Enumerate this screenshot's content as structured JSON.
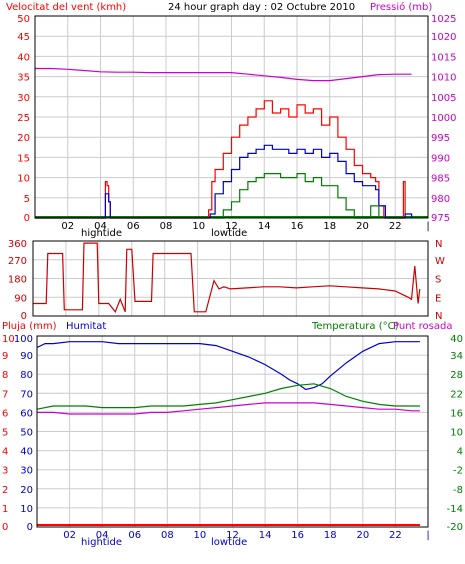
{
  "chart_data": [
    {
      "id": "wind-pressure",
      "type": "line",
      "title": "24 hour graph day : 02 Octubre 2010",
      "ylabel_left": "Velocitat del vent (kmh)",
      "ylabel_right": "Pressió (mb)",
      "x_ticks": [
        "02",
        "04",
        "06",
        "08",
        "10",
        "12",
        "14",
        "16",
        "18",
        "20",
        "22",
        "|"
      ],
      "x_annotations": [
        "hightide",
        "lowtide"
      ],
      "y_ticks_left": [
        "50",
        "45",
        "40",
        "35",
        "30",
        "25",
        "20",
        "15",
        "10",
        "5",
        "0"
      ],
      "y_ticks_right": [
        "1025",
        "1020",
        "1015",
        "1010",
        "1005",
        "1000",
        "995",
        "990",
        "985",
        "980",
        "975"
      ],
      "ylim_left": [
        0,
        50
      ],
      "ylim_right": [
        975,
        1025
      ],
      "grid": true,
      "colors": {
        "gust": "#ff0000",
        "avg": "#0000cc",
        "min": "#008000",
        "pressure": "#cc00cc",
        "base": "#008000"
      },
      "series": [
        {
          "key": "gust",
          "x": [
            0,
            4.3,
            4.4,
            4.5,
            4.6,
            10.6,
            10.8,
            11,
            11.5,
            12,
            12.5,
            13,
            13.5,
            14,
            14.5,
            15,
            15.5,
            16,
            16.5,
            17,
            17.5,
            18,
            18.5,
            19,
            19.5,
            20,
            20.5,
            20.8,
            21,
            21.3,
            22.5,
            22.6
          ],
          "y": [
            0,
            9,
            8,
            4,
            0,
            2,
            9,
            12,
            16,
            20,
            23,
            25,
            27,
            29,
            26,
            27,
            25,
            28,
            26,
            27,
            23,
            25,
            20,
            17,
            13,
            11,
            10,
            9,
            3,
            0,
            9,
            0
          ]
        },
        {
          "key": "avg",
          "x": [
            0,
            4.3,
            4.5,
            4.6,
            10.7,
            11,
            11.5,
            12,
            12.5,
            13,
            13.5,
            14,
            14.5,
            15,
            15.5,
            16,
            16.5,
            17,
            17.5,
            18,
            18.5,
            19,
            19.5,
            20,
            20.5,
            20.8,
            21,
            21.4,
            22.6,
            23
          ],
          "y": [
            0,
            6,
            4,
            0,
            1,
            6,
            9,
            12,
            15,
            16,
            17,
            18,
            17,
            17,
            16,
            17,
            16,
            17,
            15,
            16,
            14,
            11,
            9,
            8,
            8,
            7,
            3,
            0,
            1,
            0
          ]
        },
        {
          "key": "min",
          "x": [
            10.9,
            11.5,
            12,
            12.5,
            13,
            13.5,
            14,
            14.5,
            15,
            15.5,
            16,
            16.5,
            17,
            17.5,
            18,
            18.5,
            19,
            19.5,
            20,
            20.5,
            21
          ],
          "y": [
            0,
            2,
            4,
            7,
            9,
            10,
            11,
            11,
            10,
            10,
            11,
            9,
            10,
            8,
            8,
            5,
            2,
            0,
            0,
            3,
            0
          ]
        },
        {
          "key": "pressure",
          "x": [
            0,
            1,
            2,
            3,
            4,
            5,
            6,
            7,
            8,
            9,
            10,
            11,
            12,
            13,
            14,
            15,
            16,
            17,
            18,
            19,
            20,
            21,
            22,
            23
          ],
          "y": [
            1012,
            1012,
            1011.8,
            1011.5,
            1011.2,
            1011.1,
            1011.1,
            1011,
            1011,
            1011,
            1011,
            1011,
            1011,
            1010.6,
            1010.2,
            1009.8,
            1009.3,
            1009,
            1009,
            1009.5,
            1010,
            1010.5,
            1010.6,
            1010.6
          ]
        }
      ]
    },
    {
      "id": "wind-direction",
      "type": "line",
      "y_ticks_left": [
        "360",
        "270",
        "180",
        "90",
        "0"
      ],
      "y_ticks_right": [
        "N",
        "W",
        "S",
        "E",
        "N"
      ],
      "ylim_left": [
        0,
        360
      ],
      "grid": true,
      "colors": {
        "direction": "#cc0000"
      },
      "series": [
        {
          "key": "direction",
          "x": [
            0,
            0.8,
            0.9,
            1.8,
            1.9,
            3.0,
            3.1,
            3.9,
            4.0,
            4.6,
            5.0,
            5.3,
            5.6,
            5.7,
            6.0,
            6.2,
            7.2,
            7.3,
            9.6,
            9.8,
            10.5,
            11.0,
            11.3,
            11.6,
            12.0,
            13,
            14,
            15,
            16,
            17,
            18,
            19,
            20,
            21,
            22,
            22.8,
            23.0,
            23.2,
            23.4,
            23.5
          ],
          "y": [
            60,
            60,
            300,
            300,
            30,
            30,
            350,
            350,
            60,
            60,
            20,
            80,
            20,
            320,
            320,
            70,
            70,
            300,
            300,
            20,
            20,
            170,
            130,
            140,
            130,
            135,
            140,
            140,
            135,
            140,
            145,
            140,
            135,
            130,
            120,
            90,
            80,
            240,
            60,
            130
          ]
        }
      ]
    },
    {
      "id": "rain-humidity-temp",
      "type": "line",
      "ylabel_left_1": "Pluja (mm)",
      "ylabel_left_2": "Humitat",
      "ylabel_right_1": "Temperatura (°C)",
      "ylabel_right_2": "Punt rosada",
      "x_ticks": [
        "02",
        "04",
        "06",
        "08",
        "10",
        "12",
        "14",
        "16",
        "18",
        "20",
        "22",
        "|"
      ],
      "x_annotations": [
        "hightide",
        "lowtide"
      ],
      "y_ticks_rain": [
        "10",
        "9",
        "8",
        "7",
        "6",
        "5",
        "4",
        "3",
        "2",
        "1",
        "0"
      ],
      "y_ticks_humidity": [
        "100",
        "90",
        "80",
        "70",
        "60",
        "50",
        "40",
        "30",
        "20",
        "10",
        "0"
      ],
      "y_ticks_right": [
        "40",
        "34",
        "28",
        "22",
        "16",
        "10",
        "4",
        "-2",
        "-8",
        "-14",
        "-20"
      ],
      "ylim_humidity": [
        0,
        100
      ],
      "ylim_temperature": [
        -20,
        40
      ],
      "grid": true,
      "colors": {
        "rain": "#ff0000",
        "humidity": "#0000cc",
        "temperature": "#008000",
        "dewpoint": "#cc00cc"
      },
      "series": [
        {
          "key": "rain",
          "x": [
            0,
            23.5
          ],
          "y": [
            0,
            0
          ]
        },
        {
          "key": "humidity",
          "x": [
            0,
            0.5,
            1,
            2,
            3,
            4,
            5,
            6,
            7,
            8,
            9,
            10,
            11,
            12,
            13,
            14,
            15,
            15.5,
            16,
            16.5,
            17,
            17.5,
            18,
            19,
            20,
            21,
            22,
            23,
            23.5
          ],
          "y": [
            94,
            96,
            96,
            97,
            97,
            97,
            96,
            96,
            96,
            96,
            96,
            96,
            95,
            92,
            89,
            85,
            80,
            77,
            75,
            72,
            73,
            75,
            79,
            86,
            92,
            96,
            97,
            97,
            97
          ]
        },
        {
          "key": "temperature",
          "x": [
            0,
            1,
            2,
            3,
            4,
            5,
            6,
            7,
            8,
            9,
            10,
            11,
            12,
            13,
            14,
            15,
            16,
            17,
            18,
            19,
            20,
            21,
            22,
            23,
            23.5
          ],
          "y": [
            17,
            18,
            18,
            18,
            17.5,
            17.5,
            17.5,
            18,
            18,
            18,
            18.5,
            19,
            20,
            21,
            22,
            23.5,
            24.5,
            25,
            23.5,
            21,
            19.5,
            18.5,
            18,
            18,
            18
          ]
        },
        {
          "key": "dewpoint",
          "x": [
            0,
            1,
            2,
            3,
            4,
            5,
            6,
            7,
            8,
            9,
            10,
            11,
            12,
            13,
            14,
            15,
            16,
            17,
            18,
            19,
            20,
            21,
            22,
            23,
            23.5
          ],
          "y": [
            16,
            16,
            15.5,
            15.5,
            15.5,
            15.5,
            15.5,
            16,
            16,
            16.5,
            17,
            17.5,
            18,
            18.5,
            19,
            19,
            19,
            19,
            18.5,
            18,
            17.5,
            17,
            17,
            16.5,
            16.5
          ]
        }
      ]
    }
  ]
}
